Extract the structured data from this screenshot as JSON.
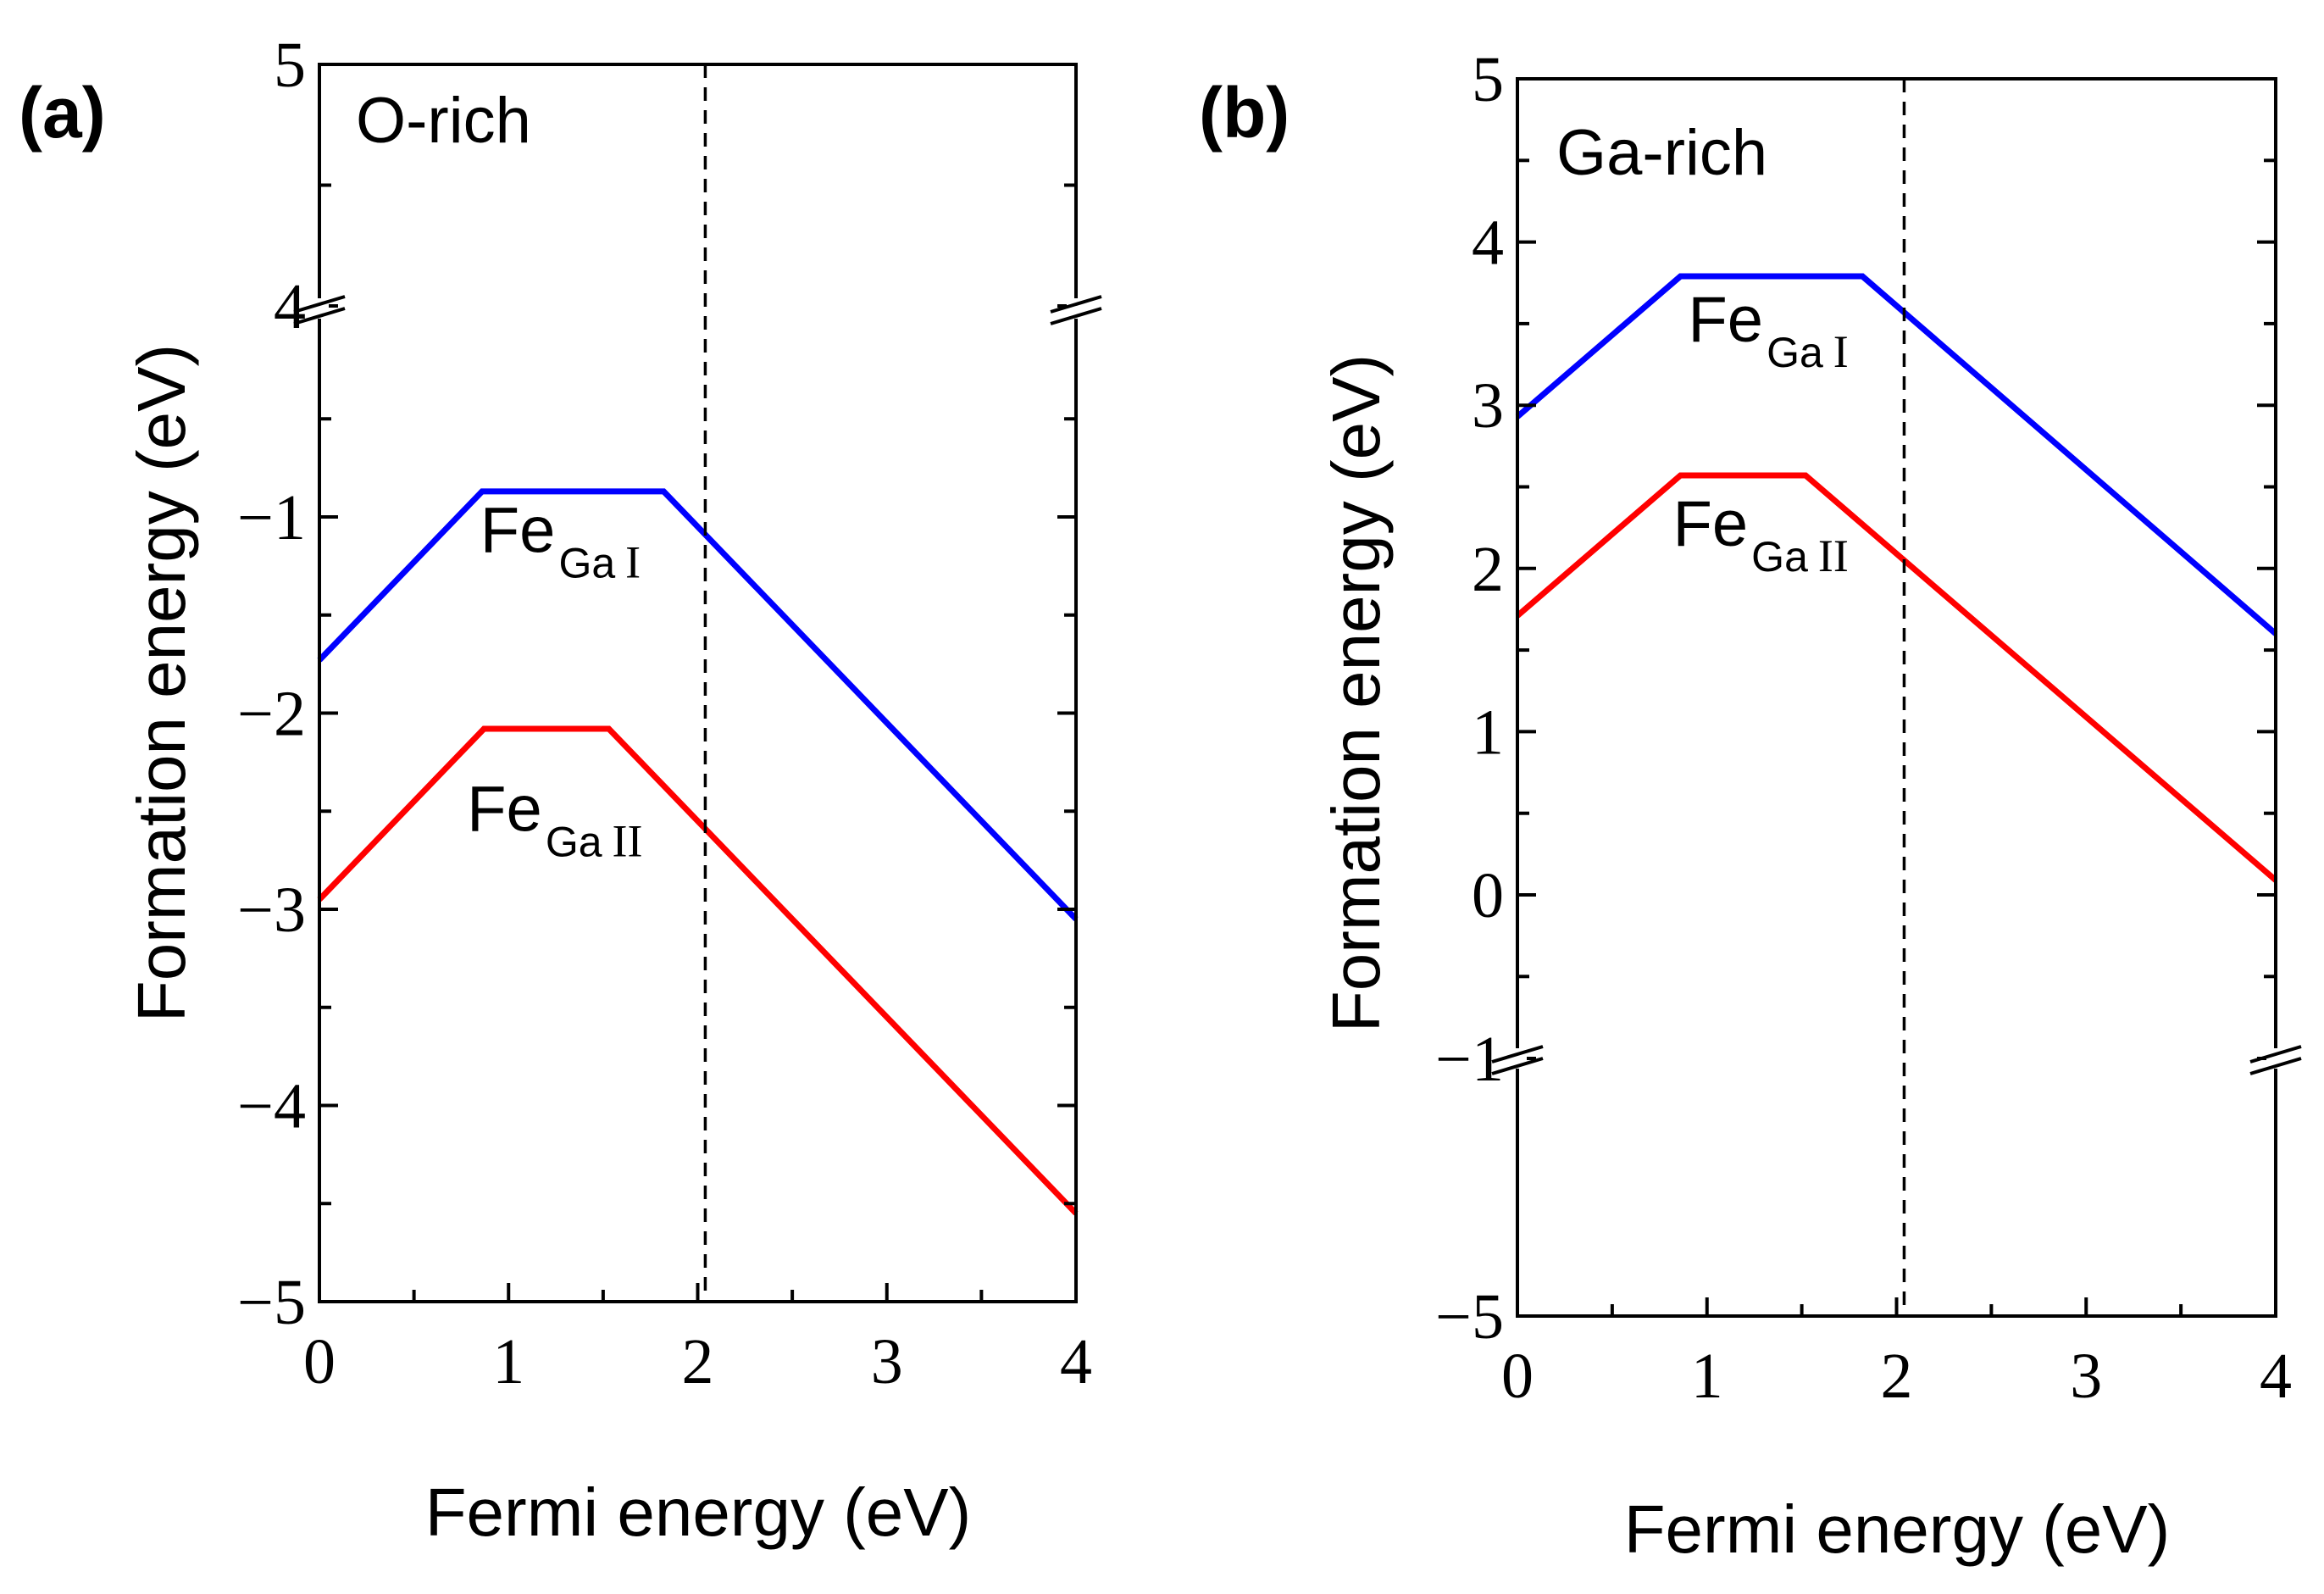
{
  "chart_data": [
    {
      "type": "line",
      "panel_label": "(a)",
      "condition": "O-rich",
      "xlabel": "Fermi energy (eV)",
      "ylabel": "Formation energy (eV)",
      "xlim": [
        0,
        4
      ],
      "ylim": [
        -5,
        5
      ],
      "axis_break": {
        "lower": -0.15,
        "upper": 4
      },
      "xticks": [
        0,
        1,
        2,
        3,
        4
      ],
      "yticks": [
        -5,
        -4,
        -3,
        -2,
        -1,
        4,
        5
      ],
      "ytick_labels": [
        "−5",
        "−4",
        "−3",
        "−2",
        "−1",
        "4",
        "5"
      ],
      "vline_x": 2.04,
      "series": [
        {
          "name": "FeGa I",
          "main": "Fe",
          "sub": "Ga",
          "roman": "I",
          "color": "#0000ff",
          "x": [
            0,
            0.86,
            1.82,
            4
          ],
          "y": [
            -1.73,
            -0.87,
            -0.87,
            -3.05
          ],
          "label_at": [
            0.85,
            -1.18
          ]
        },
        {
          "name": "FeGa II",
          "main": "Fe",
          "sub": "Ga",
          "roman": "II",
          "color": "#ff0000",
          "x": [
            0,
            0.87,
            1.53,
            4
          ],
          "y": [
            -2.95,
            -2.08,
            -2.08,
            -4.55
          ],
          "label_at": [
            0.78,
            -2.6
          ]
        }
      ]
    },
    {
      "type": "line",
      "panel_label": "(b)",
      "condition": "Ga-rich",
      "xlabel": "Fermi energy (eV)",
      "ylabel": "Formation energy (eV)",
      "xlim": [
        0,
        4
      ],
      "ylim": [
        -5,
        5
      ],
      "axis_break": {
        "lower": -5,
        "upper": -1
      },
      "xticks": [
        0,
        1,
        2,
        3,
        4
      ],
      "yticks": [
        -5,
        -1,
        0,
        1,
        2,
        3,
        4,
        5
      ],
      "ytick_labels": [
        "−5",
        "−1",
        "0",
        "1",
        "2",
        "3",
        "4",
        "5"
      ],
      "vline_x": 2.04,
      "series": [
        {
          "name": "FeGa I",
          "main": "Fe",
          "sub": "Ga",
          "roman": "I",
          "color": "#0000ff",
          "x": [
            0,
            0.86,
            1.82,
            4
          ],
          "y": [
            2.93,
            3.79,
            3.79,
            1.6
          ],
          "label_at": [
            0.9,
            3.39
          ]
        },
        {
          "name": "FeGa II",
          "main": "Fe",
          "sub": "Ga",
          "roman": "II",
          "color": "#ff0000",
          "x": [
            0,
            0.86,
            1.52,
            4
          ],
          "y": [
            1.71,
            2.57,
            2.57,
            0.09
          ],
          "label_at": [
            0.82,
            2.14
          ]
        }
      ]
    }
  ]
}
